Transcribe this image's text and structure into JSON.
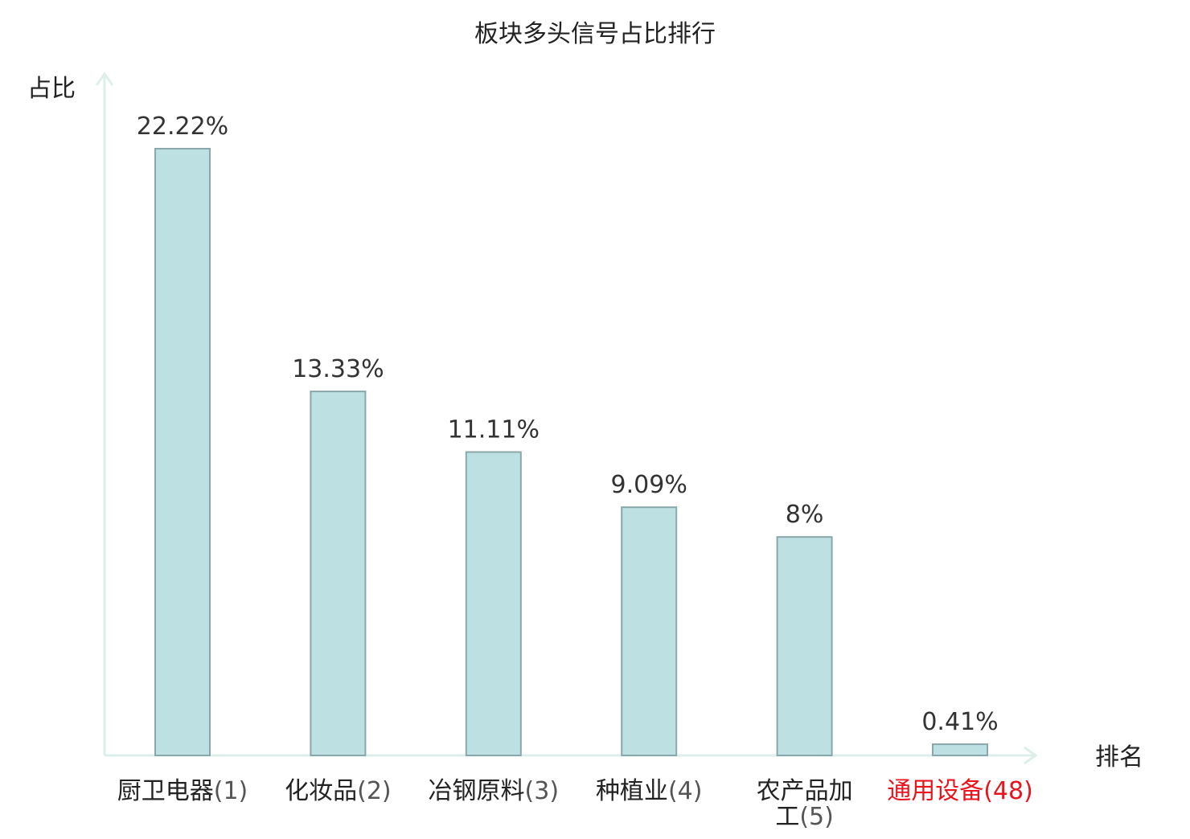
{
  "chart_data": {
    "type": "bar",
    "title": "板块多头信号占比排行",
    "ylabel": "占比",
    "xlabel": "排名",
    "categories": [
      {
        "name": "厨卫电器",
        "rank": "(1)",
        "highlight": false
      },
      {
        "name": "化妆品",
        "rank": "(2)",
        "highlight": false
      },
      {
        "name": "冶钢原料",
        "rank": "(3)",
        "highlight": false
      },
      {
        "name": "种植业",
        "rank": "(4)",
        "highlight": false
      },
      {
        "name": "农产品加工",
        "rank": "(5)",
        "highlight": false
      },
      {
        "name": "通用设备",
        "rank": "(48)",
        "highlight": true
      }
    ],
    "values": [
      22.22,
      13.33,
      11.11,
      9.09,
      8,
      0.41
    ],
    "value_labels": [
      "22.22%",
      "13.33%",
      "11.11%",
      "9.09%",
      "8%",
      "0.41%"
    ],
    "ylim": [
      0,
      25
    ],
    "grid": false,
    "legend": "none"
  },
  "colors": {
    "bar_fill": "#bde0e3",
    "bar_stroke": "#8aa8aa",
    "axis": "#dcefeb",
    "highlight": "#e8141e",
    "text": "#222222",
    "rank_text": "#555555"
  }
}
